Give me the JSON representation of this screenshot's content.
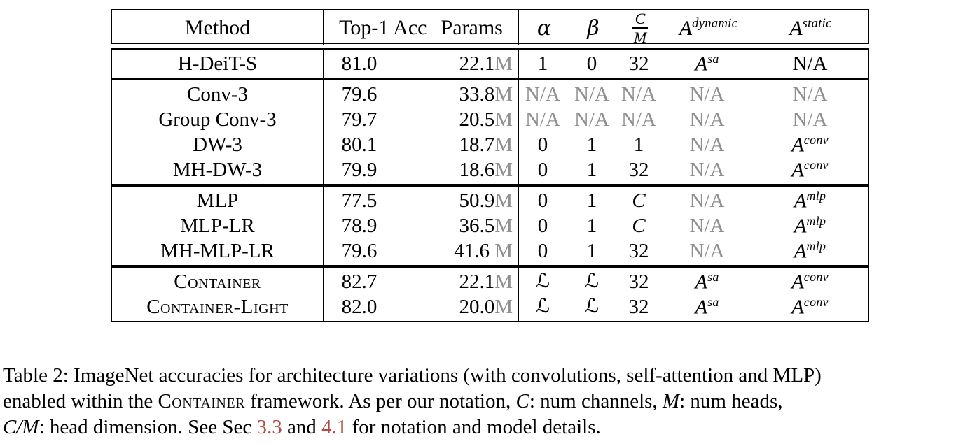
{
  "colors": {
    "text": "#000000",
    "muted": "#8f8f8f",
    "link": "#b04a42",
    "border": "#000000",
    "bg": "#ffffff"
  },
  "table": {
    "header": {
      "method": "Method",
      "top1_acc": "Top-1 Acc",
      "params": "Params",
      "alpha": "α",
      "beta": "β",
      "frac_num": "C",
      "frac_den": "M",
      "a_dynamic": {
        "base": "A",
        "sup": "dynamic"
      },
      "a_static": {
        "base": "A",
        "sup": "static"
      }
    },
    "groups": [
      {
        "rows": [
          {
            "method": "H-DeiT-S",
            "sc": false,
            "top1": "81.0",
            "params": "22.1",
            "unit": "M",
            "cells": [
              {
                "t": "1"
              },
              {
                "t": "0"
              },
              {
                "t": "32"
              },
              {
                "base": "A",
                "sup": "sa"
              },
              {
                "t": "N/A"
              }
            ]
          }
        ]
      },
      {
        "rows": [
          {
            "method": "Conv-3",
            "sc": false,
            "top1": "79.6",
            "params": "33.8",
            "unit": "M",
            "cells": [
              {
                "t": "N/A",
                "muted": true
              },
              {
                "t": "N/A",
                "muted": true
              },
              {
                "t": "N/A",
                "muted": true
              },
              {
                "t": "N/A",
                "muted": true
              },
              {
                "t": "N/A",
                "muted": true
              }
            ]
          },
          {
            "method": "Group Conv-3",
            "sc": false,
            "top1": "79.7",
            "params": "20.5",
            "unit": "M",
            "cells": [
              {
                "t": "N/A",
                "muted": true
              },
              {
                "t": "N/A",
                "muted": true
              },
              {
                "t": "N/A",
                "muted": true
              },
              {
                "t": "N/A",
                "muted": true
              },
              {
                "t": "N/A",
                "muted": true
              }
            ]
          },
          {
            "method": "DW-3",
            "sc": false,
            "top1": "80.1",
            "params": "18.7",
            "unit": "M",
            "cells": [
              {
                "t": "0"
              },
              {
                "t": "1"
              },
              {
                "t": "1"
              },
              {
                "t": "N/A",
                "muted": true
              },
              {
                "base": "A",
                "sup": "conv"
              }
            ]
          },
          {
            "method": "MH-DW-3",
            "sc": false,
            "top1": "79.9",
            "params": "18.6",
            "unit": "M",
            "cells": [
              {
                "t": "0"
              },
              {
                "t": "1"
              },
              {
                "t": "32"
              },
              {
                "t": "N/A",
                "muted": true
              },
              {
                "base": "A",
                "sup": "conv"
              }
            ]
          }
        ]
      },
      {
        "rows": [
          {
            "method": "MLP",
            "sc": false,
            "top1": "77.5",
            "params": "50.9",
            "unit": "M",
            "cells": [
              {
                "t": "0"
              },
              {
                "t": "1"
              },
              {
                "t": "C",
                "it": true
              },
              {
                "t": "N/A",
                "muted": true
              },
              {
                "base": "A",
                "sup": "mlp"
              }
            ]
          },
          {
            "method": "MLP-LR",
            "sc": false,
            "top1": "78.9",
            "params": "36.5",
            "unit": "M",
            "cells": [
              {
                "t": "0"
              },
              {
                "t": "1"
              },
              {
                "t": "C",
                "it": true
              },
              {
                "t": "N/A",
                "muted": true
              },
              {
                "base": "A",
                "sup": "mlp"
              }
            ]
          },
          {
            "method": "MH-MLP-LR",
            "sc": false,
            "top1": "79.6",
            "params": "41.6",
            "unit": " M",
            "cells": [
              {
                "t": "0"
              },
              {
                "t": "1"
              },
              {
                "t": "32"
              },
              {
                "t": "N/A",
                "muted": true
              },
              {
                "base": "A",
                "sup": "mlp"
              }
            ]
          }
        ]
      },
      {
        "rows": [
          {
            "method": "Container",
            "sc": true,
            "top1": "82.7",
            "params": "22.1",
            "unit": "M",
            "cells": [
              {
                "t": "ℒ",
                "cal": true
              },
              {
                "t": "ℒ",
                "cal": true
              },
              {
                "t": "32"
              },
              {
                "base": "A",
                "sup": "sa"
              },
              {
                "base": "A",
                "sup": "conv"
              }
            ]
          },
          {
            "method": "Container-Light",
            "sc": true,
            "top1": "82.0",
            "params": "20.0",
            "unit": "M",
            "cells": [
              {
                "t": "ℒ",
                "cal": true
              },
              {
                "t": "ℒ",
                "cal": true
              },
              {
                "t": "32"
              },
              {
                "base": "A",
                "sup": "sa"
              },
              {
                "base": "A",
                "sup": "conv"
              }
            ]
          }
        ]
      }
    ]
  },
  "caption": {
    "segments": [
      {
        "t": "Table 2: ImageNet accuracies for architecture variations (with convolutions, self-attention and MLP)",
        "s": "plain"
      },
      {
        "s": "br"
      },
      {
        "t": "enabled within the ",
        "s": "plain"
      },
      {
        "t": "Container",
        "s": "sc"
      },
      {
        "t": " framework. As per our notation, ",
        "s": "plain"
      },
      {
        "t": "C",
        "s": "it"
      },
      {
        "t": ": num channels, ",
        "s": "plain"
      },
      {
        "t": "M",
        "s": "it"
      },
      {
        "t": ": num heads,",
        "s": "plain"
      },
      {
        "s": "br"
      },
      {
        "t": "C/M",
        "s": "it"
      },
      {
        "t": ": head dimension. See Sec ",
        "s": "plain"
      },
      {
        "t": "3.3",
        "s": "link"
      },
      {
        "t": " and ",
        "s": "plain"
      },
      {
        "t": "4.1",
        "s": "link"
      },
      {
        "t": " for notation and model details.",
        "s": "plain"
      }
    ]
  }
}
